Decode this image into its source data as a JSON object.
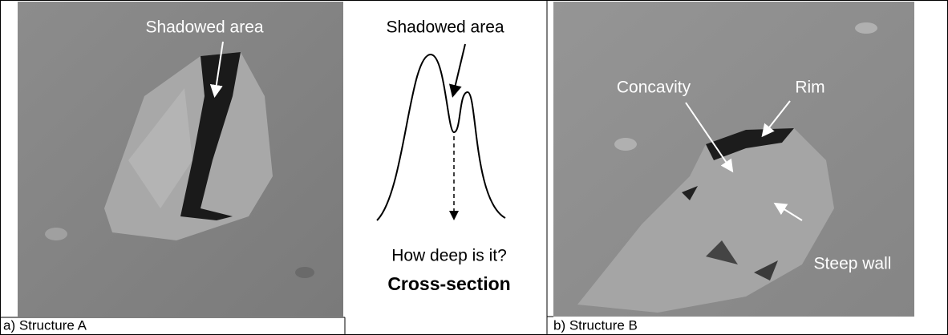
{
  "panels": [
    {
      "image_labels": [
        "Shadowed area"
      ],
      "caption": "a) Structure A"
    },
    {
      "image_labels": [
        "Concavity",
        "Rim",
        "Steep wall"
      ],
      "caption": "b) Structure B"
    }
  ],
  "cross_section": {
    "label": "Shadowed area",
    "question": "How deep is it?",
    "title": "Cross-section"
  }
}
